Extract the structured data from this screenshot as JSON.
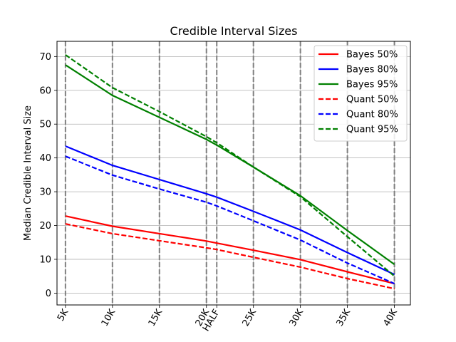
{
  "chart_data": {
    "type": "line",
    "title": "Credible Interval Sizes",
    "xlabel": "",
    "ylabel": "Median Credible Interval Size",
    "x_ticks": [
      "5K",
      "10K",
      "15K",
      "20K",
      "HALF",
      "25K",
      "30K",
      "35K",
      "40K"
    ],
    "x_values": [
      5000,
      10000,
      15000,
      20000,
      21097.5,
      25000,
      30000,
      35000,
      40000
    ],
    "xlim": [
      4100,
      41700
    ],
    "ylim": [
      -3.5,
      74.5
    ],
    "y_ticks": [
      0,
      10,
      20,
      30,
      40,
      50,
      60,
      70
    ],
    "grid": true,
    "vertical_markers": {
      "color": "#808080",
      "style": "dashed"
    },
    "legend_position": "top-right",
    "series": [
      {
        "name": "Bayes 50%",
        "color": "#ff0000",
        "dash": "solid",
        "values": [
          22.8,
          19.8,
          17.6,
          15.4,
          14.8,
          12.7,
          9.9,
          6.3,
          2.8
        ]
      },
      {
        "name": "Bayes 80%",
        "color": "#0000ff",
        "dash": "solid",
        "values": [
          43.5,
          37.8,
          33.6,
          29.4,
          28.4,
          24.2,
          18.7,
          12.0,
          5.5
        ]
      },
      {
        "name": "Bayes 95%",
        "color": "#008000",
        "dash": "solid",
        "values": [
          67.5,
          58.5,
          52.0,
          45.5,
          43.8,
          37.3,
          28.8,
          18.5,
          8.5
        ]
      },
      {
        "name": "Quant 50%",
        "color": "#ff0000",
        "dash": "dashed",
        "values": [
          20.5,
          17.6,
          15.5,
          13.4,
          12.9,
          10.6,
          7.7,
          4.3,
          1.3
        ]
      },
      {
        "name": "Quant 80%",
        "color": "#0000ff",
        "dash": "dashed",
        "values": [
          40.5,
          34.9,
          30.8,
          26.9,
          25.8,
          21.4,
          15.7,
          8.9,
          2.8
        ]
      },
      {
        "name": "Quant 95%",
        "color": "#008000",
        "dash": "dashed",
        "values": [
          70.5,
          60.8,
          53.7,
          46.3,
          44.5,
          37.3,
          28.5,
          16.7,
          5.0
        ]
      }
    ]
  }
}
